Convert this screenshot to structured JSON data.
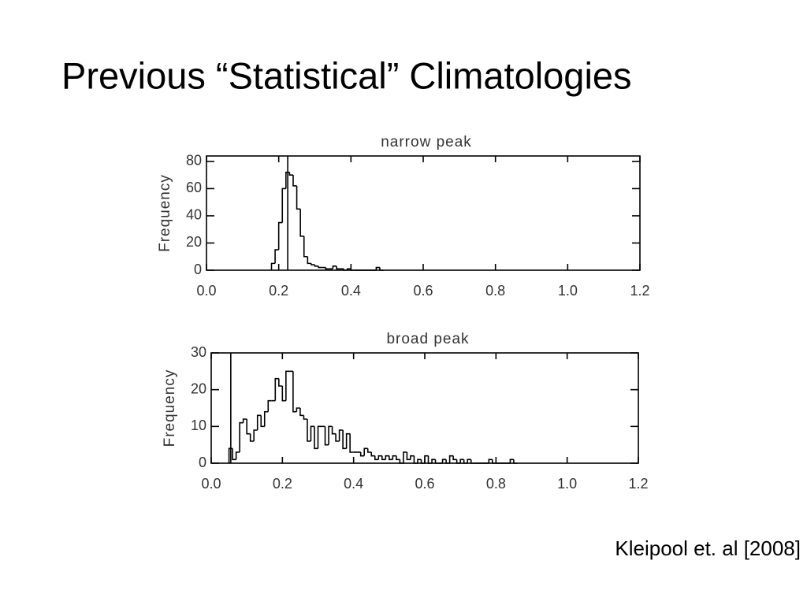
{
  "title": "Previous “Statistical” Climatologies",
  "citation": "Kleipool et. al [2008]",
  "chart_data": [
    {
      "type": "histogram",
      "title": "narrow peak",
      "y_label": "Frequency",
      "color": "#000000",
      "vline": 0.225,
      "bins": [
        0.18,
        0.19,
        0.2,
        0.21,
        0.22,
        0.23,
        0.24,
        0.25,
        0.26,
        0.27,
        0.28,
        0.29,
        0.3,
        0.31,
        0.32,
        0.33,
        0.34,
        0.35,
        0.36,
        0.37,
        0.38,
        0.39,
        0.4,
        0.41,
        0.42,
        0.43,
        0.44,
        0.45,
        0.46,
        0.47,
        0.48,
        0.49
      ],
      "values": [
        5,
        15,
        35,
        60,
        72,
        70,
        62,
        45,
        25,
        10,
        5,
        4,
        3,
        2,
        2,
        1,
        1,
        3,
        1,
        1,
        0,
        1,
        0,
        0,
        0,
        0,
        0,
        0,
        0,
        2,
        0
      ],
      "xlim": [
        0,
        1.2
      ],
      "ylim": [
        0,
        84
      ],
      "xticks": [
        {
          "value": 0,
          "label": "0.0"
        },
        0.2,
        0.4,
        0.6,
        0.8,
        {
          "value": 1,
          "label": "1.0"
        },
        1.2
      ],
      "yticks": [
        0,
        20,
        40,
        60,
        80
      ]
    },
    {
      "type": "histogram",
      "title": "broad peak",
      "y_label": "Frequency",
      "color": "#000000",
      "vline": 0.055,
      "bins": [
        0.05,
        0.06,
        0.07,
        0.08,
        0.09,
        0.1,
        0.11,
        0.12,
        0.13,
        0.14,
        0.15,
        0.16,
        0.17,
        0.18,
        0.19,
        0.2,
        0.21,
        0.22,
        0.23,
        0.24,
        0.25,
        0.26,
        0.27,
        0.28,
        0.29,
        0.3,
        0.31,
        0.32,
        0.33,
        0.34,
        0.35,
        0.36,
        0.37,
        0.38,
        0.39,
        0.4,
        0.41,
        0.42,
        0.43,
        0.44,
        0.45,
        0.46,
        0.47,
        0.48,
        0.49,
        0.5,
        0.51,
        0.52,
        0.53,
        0.54,
        0.55,
        0.56,
        0.57,
        0.58,
        0.59,
        0.6,
        0.61,
        0.62,
        0.63,
        0.64,
        0.65,
        0.66,
        0.67,
        0.68,
        0.69,
        0.7,
        0.71,
        0.72,
        0.73,
        0.74,
        0.75,
        0.76,
        0.77,
        0.78,
        0.79,
        0.8,
        0.81,
        0.82,
        0.83,
        0.84,
        0.85,
        0.86
      ],
      "values": [
        4,
        1,
        3,
        11,
        12,
        8,
        6,
        9,
        13,
        10,
        14,
        17,
        17,
        23,
        21,
        17,
        25,
        25,
        14,
        15,
        13,
        12,
        6,
        10,
        4,
        10,
        10,
        5,
        10,
        8,
        6,
        9,
        4,
        8,
        3,
        3,
        3,
        2,
        4,
        3,
        2,
        1,
        2,
        1,
        2,
        1,
        2,
        1,
        0,
        3,
        1,
        2,
        0,
        1,
        0,
        2,
        0,
        1,
        0,
        0,
        1,
        0,
        2,
        1,
        0,
        1,
        0,
        1,
        0,
        0,
        0,
        0,
        0,
        1,
        0,
        0,
        0,
        0,
        0,
        1,
        0
      ],
      "xlim": [
        0,
        1.2
      ],
      "ylim": [
        0,
        30
      ],
      "xticks": [
        {
          "value": 0,
          "label": "0.0"
        },
        0.2,
        0.4,
        0.6,
        0.8,
        {
          "value": 1,
          "label": "1.0"
        },
        1.2
      ],
      "yticks": [
        0,
        10,
        20,
        30
      ]
    }
  ]
}
